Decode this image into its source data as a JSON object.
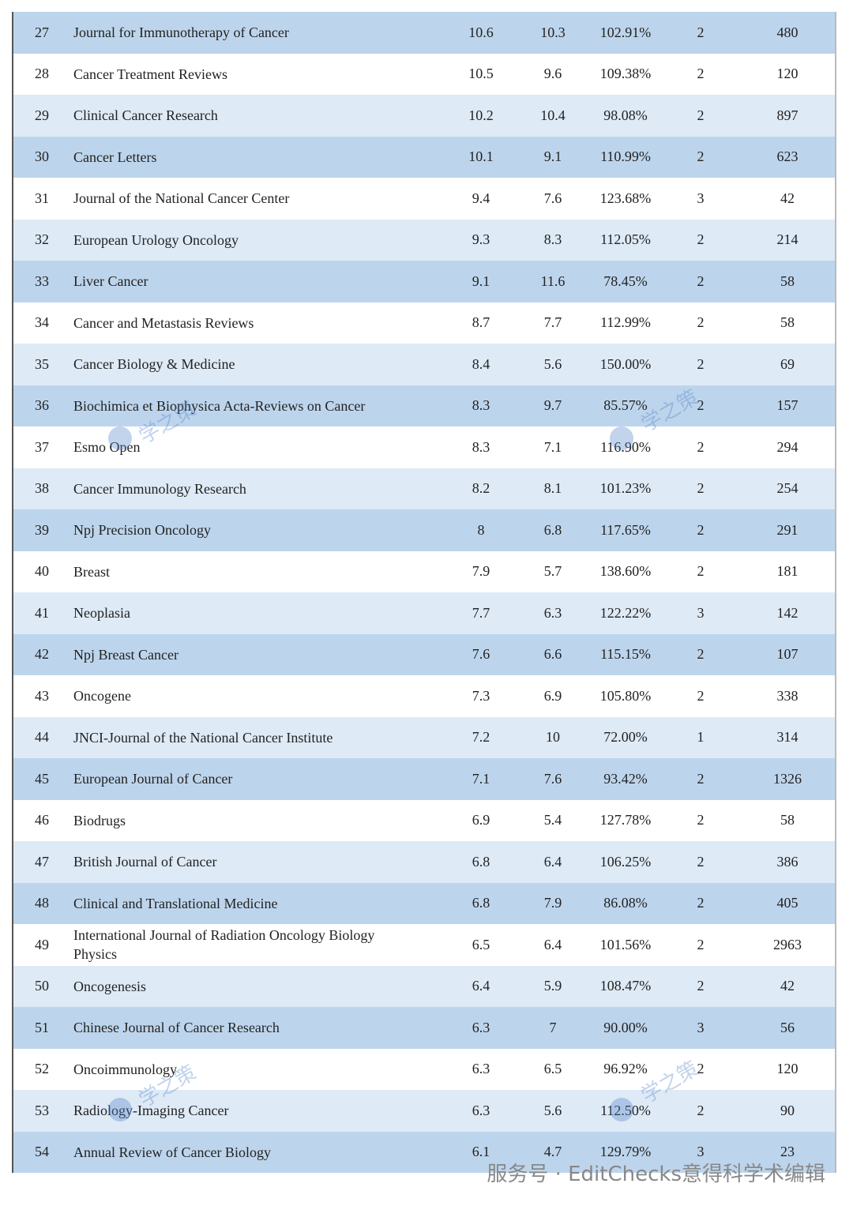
{
  "table": {
    "rows": [
      [
        "27",
        "Journal for Immunotherapy of Cancer",
        "10.6",
        "10.3",
        "102.91%",
        "2",
        "480"
      ],
      [
        "28",
        "Cancer Treatment Reviews",
        "10.5",
        "9.6",
        "109.38%",
        "2",
        "120"
      ],
      [
        "29",
        "Clinical Cancer Research",
        "10.2",
        "10.4",
        "98.08%",
        "2",
        "897"
      ],
      [
        "30",
        "Cancer Letters",
        "10.1",
        "9.1",
        "110.99%",
        "2",
        "623"
      ],
      [
        "31",
        "Journal of the National Cancer Center",
        "9.4",
        "7.6",
        "123.68%",
        "3",
        "42"
      ],
      [
        "32",
        "European Urology Oncology",
        "9.3",
        "8.3",
        "112.05%",
        "2",
        "214"
      ],
      [
        "33",
        "Liver Cancer",
        "9.1",
        "11.6",
        "78.45%",
        "2",
        "58"
      ],
      [
        "34",
        "Cancer and Metastasis Reviews",
        "8.7",
        "7.7",
        "112.99%",
        "2",
        "58"
      ],
      [
        "35",
        "Cancer Biology & Medicine",
        "8.4",
        "5.6",
        "150.00%",
        "2",
        "69"
      ],
      [
        "36",
        "Biochimica et Biophysica Acta-Reviews on Cancer",
        "8.3",
        "9.7",
        "85.57%",
        "2",
        "157"
      ],
      [
        "37",
        "Esmo Open",
        "8.3",
        "7.1",
        "116.90%",
        "2",
        "294"
      ],
      [
        "38",
        "Cancer Immunology Research",
        "8.2",
        "8.1",
        "101.23%",
        "2",
        "254"
      ],
      [
        "39",
        "Npj Precision Oncology",
        "8",
        "6.8",
        "117.65%",
        "2",
        "291"
      ],
      [
        "40",
        "Breast",
        "7.9",
        "5.7",
        "138.60%",
        "2",
        "181"
      ],
      [
        "41",
        "Neoplasia",
        "7.7",
        "6.3",
        "122.22%",
        "3",
        "142"
      ],
      [
        "42",
        "Npj Breast Cancer",
        "7.6",
        "6.6",
        "115.15%",
        "2",
        "107"
      ],
      [
        "43",
        "Oncogene",
        "7.3",
        "6.9",
        "105.80%",
        "2",
        "338"
      ],
      [
        "44",
        "JNCI-Journal of the National Cancer Institute",
        "7.2",
        "10",
        "72.00%",
        "1",
        "314"
      ],
      [
        "45",
        "European Journal of Cancer",
        "7.1",
        "7.6",
        "93.42%",
        "2",
        "1326"
      ],
      [
        "46",
        "Biodrugs",
        "6.9",
        "5.4",
        "127.78%",
        "2",
        "58"
      ],
      [
        "47",
        "British Journal of Cancer",
        "6.8",
        "6.4",
        "106.25%",
        "2",
        "386"
      ],
      [
        "48",
        "Clinical and Translational Medicine",
        "6.8",
        "7.9",
        "86.08%",
        "2",
        "405"
      ],
      [
        "49",
        "International Journal of Radiation Oncology Biology Physics",
        "6.5",
        "6.4",
        "101.56%",
        "2",
        "2963"
      ],
      [
        "50",
        "Oncogenesis",
        "6.4",
        "5.9",
        "108.47%",
        "2",
        "42"
      ],
      [
        "51",
        "Chinese Journal of Cancer Research",
        "6.3",
        "7",
        "90.00%",
        "3",
        "56"
      ],
      [
        "52",
        "Oncoimmunology",
        "6.3",
        "6.5",
        "96.92%",
        "2",
        "120"
      ],
      [
        "53",
        "Radiology-Imaging Cancer",
        "6.3",
        "5.6",
        "112.50%",
        "2",
        "90"
      ],
      [
        "54",
        "Annual Review of Cancer Biology",
        "6.1",
        "4.7",
        "129.79%",
        "3",
        "23"
      ]
    ]
  },
  "watermark": "学之策",
  "footer": "服务号 · EditChecks意得科学术编辑"
}
